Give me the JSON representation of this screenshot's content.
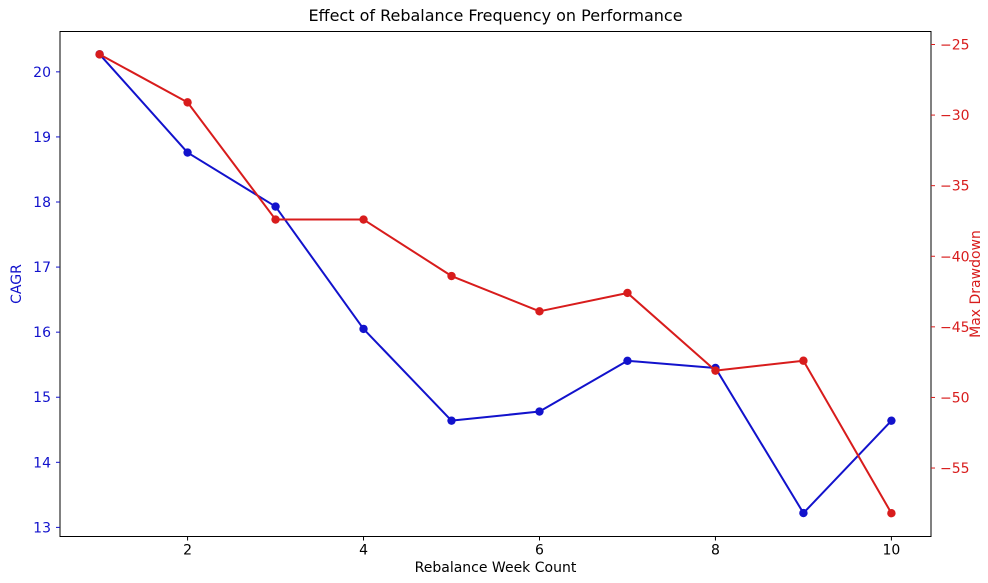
{
  "chart_data": {
    "type": "line",
    "title": "Effect of Rebalance Frequency on Performance",
    "xlabel": "Rebalance Week Count",
    "ylabel_left": "CAGR",
    "ylabel_right": "Max Drawdown",
    "x": [
      1,
      2,
      3,
      4,
      5,
      6,
      7,
      8,
      9,
      10
    ],
    "series": [
      {
        "name": "CAGR",
        "axis": "left",
        "color": "#1212cc",
        "values": [
          20.27,
          18.76,
          17.93,
          16.05,
          14.64,
          14.78,
          15.56,
          15.45,
          13.22,
          14.64
        ]
      },
      {
        "name": "Max Drawdown",
        "axis": "right",
        "color": "#d81c1c",
        "values": [
          -25.7,
          -29.1,
          -37.4,
          -37.4,
          -41.4,
          -43.9,
          -42.6,
          -48.1,
          -47.4,
          -58.2
        ]
      }
    ],
    "x_ticks": [
      2,
      4,
      6,
      8,
      10
    ],
    "left_ticks": [
      13,
      14,
      15,
      16,
      17,
      18,
      19,
      20
    ],
    "right_ticks": [
      -25,
      -30,
      -35,
      -40,
      -45,
      -50,
      -55
    ],
    "xlim": [
      0.55,
      10.45
    ],
    "ylim_left": [
      12.86,
      20.62
    ],
    "ylim_right": [
      -59.85,
      -24.08
    ],
    "grid": false,
    "legend": "none",
    "axis_colors": {
      "left": "#1212cc",
      "right": "#d81c1c",
      "x": "#000000"
    }
  }
}
